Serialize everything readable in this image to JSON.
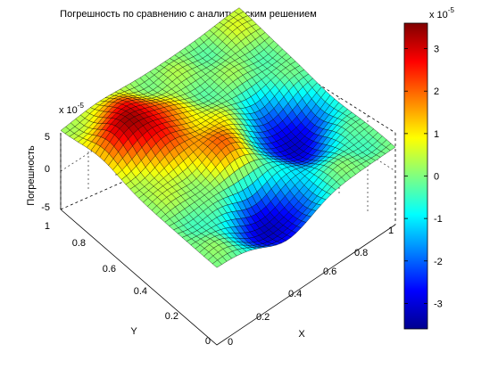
{
  "window": {
    "title": ""
  },
  "chart_data": {
    "type": "surface",
    "title": "Погрешность по сравнению с аналитическим решением",
    "xlabel": "X",
    "ylabel": "Y",
    "zlabel": "Погрешность",
    "xlim": [
      0,
      1
    ],
    "ylim": [
      0,
      1
    ],
    "zlim": [
      -5,
      5
    ],
    "z_multiplier_label": "x 10",
    "z_multiplier_exp": "-5",
    "x_ticks": [
      "0",
      "0.2",
      "0.4",
      "0.6",
      "0.8",
      "1"
    ],
    "y_ticks": [
      "0",
      "0.2",
      "0.4",
      "0.6",
      "0.8",
      "1"
    ],
    "z_ticks": [
      "-5",
      "0",
      "5"
    ],
    "colormap": "jet",
    "grid": true,
    "surface_features": [
      {
        "x": 0.2,
        "y": 0.75,
        "z": 3.5,
        "kind": "peak"
      },
      {
        "x": 0.75,
        "y": 0.4,
        "z": -3.5,
        "kind": "trough"
      },
      {
        "x": 0.4,
        "y": 0.1,
        "z": -3.5,
        "kind": "trough"
      },
      {
        "x": 0.45,
        "y": 0.45,
        "z": 2.0,
        "kind": "peak"
      },
      {
        "x": 1.0,
        "y": 1.0,
        "z": 0.5,
        "kind": "ridge"
      }
    ],
    "colorbar": {
      "range": [
        -3.6,
        3.6
      ],
      "ticks": [
        "3",
        "2",
        "1",
        "0",
        "-1",
        "-2",
        "-3"
      ],
      "multiplier_label": "x 10",
      "multiplier_exp": "-5"
    }
  }
}
